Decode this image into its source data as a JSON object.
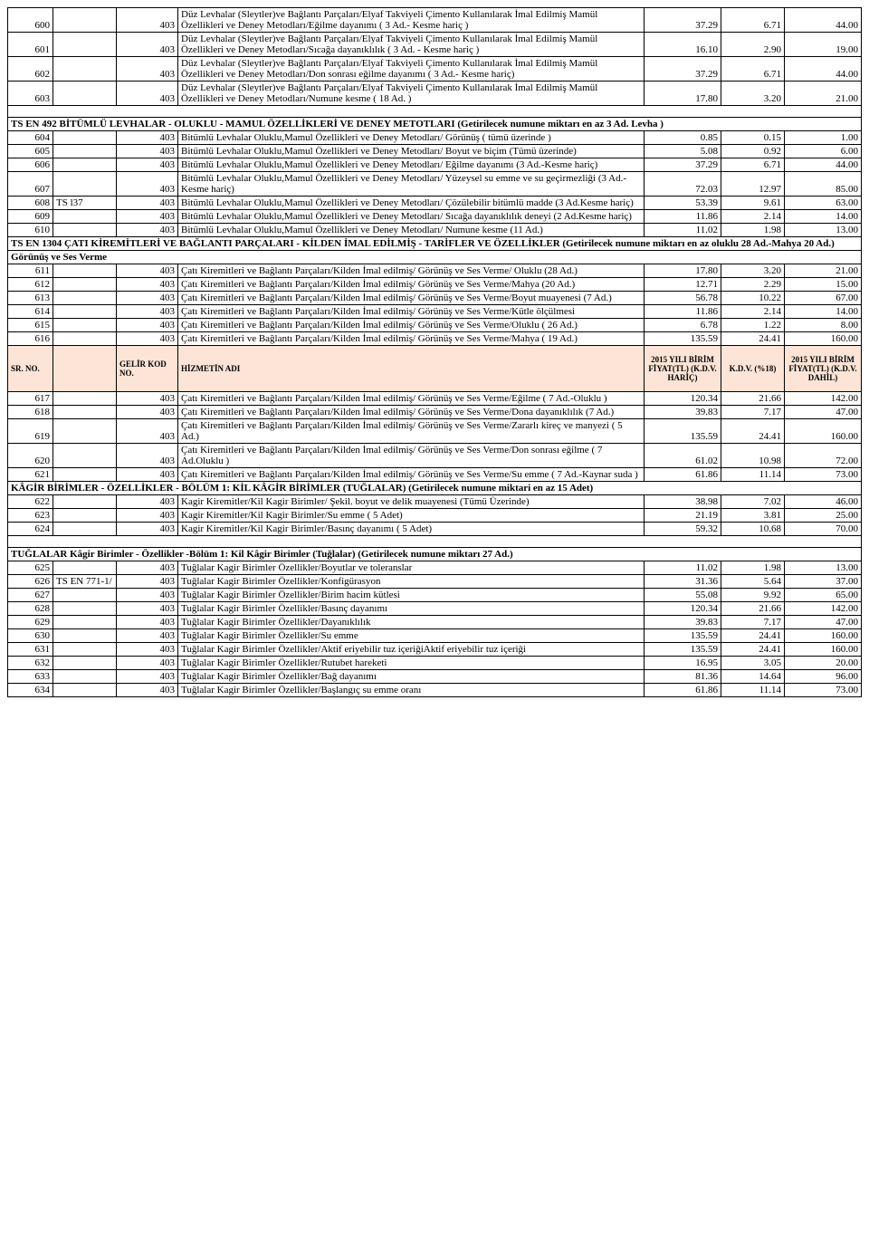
{
  "header": {
    "sr": "SR. NO.",
    "kod": "GELİR KOD NO.",
    "desc": "HİZMETİN ADI",
    "n1": "2015 YILI BİRİM FİYAT(TL) (K.D.V. HARİÇ)",
    "n2": "K.D.V. (%18)",
    "n3": "2015 YILI BİRİM FİYAT(TL) (K.D.V. DAHİL)"
  },
  "rows": [
    {
      "sr": "600",
      "std": "",
      "kod": "403",
      "desc": "Düz Levhalar (Sleytler)ve Bağlantı Parçaları/Elyaf Takviyeli Çimento Kullanılarak İmal Edilmiş Mamül Özellikleri ve Deney Metodları/Eğilme dayanımı  ( 3 Ad.- Kesme hariç )",
      "n1": "37.29",
      "n2": "6.71",
      "n3": "44.00"
    },
    {
      "sr": "601",
      "std": "",
      "kod": "403",
      "desc": "Düz Levhalar (Sleytler)ve Bağlantı Parçaları/Elyaf Takviyeli Çimento Kullanılarak İmal Edilmiş Mamül Özellikleri ve Deney Metodları/Sıcağa dayanıklılık ( 3 Ad. - Kesme hariç )",
      "n1": "16.10",
      "n2": "2.90",
      "n3": "19.00"
    },
    {
      "sr": "602",
      "std": "",
      "kod": "403",
      "desc": "Düz Levhalar (Sleytler)ve Bağlantı Parçaları/Elyaf Takviyeli Çimento Kullanılarak İmal Edilmiş Mamül Özellikleri ve Deney Metodları/Don sonrası eğilme dayanımı  ( 3 Ad.- Kesme hariç)",
      "n1": "37.29",
      "n2": "6.71",
      "n3": "44.00"
    },
    {
      "sr": "603",
      "std": "",
      "kod": "403",
      "desc": "Düz Levhalar (Sleytler)ve Bağlantı Parçaları/Elyaf Takviyeli Çimento Kullanılarak İmal Edilmiş Mamül Özellikleri ve Deney Metodları/Numune kesme  ( 18 Ad. )",
      "n1": "17.80",
      "n2": "3.20",
      "n3": "21.00"
    },
    {
      "type": "spacer"
    },
    {
      "type": "section",
      "desc": "TS EN 492 BİTÜMLÜ LEVHALAR - OLUKLU - MAMUL ÖZELLİKLERİ VE DENEY METOTLARI   (Getirilecek numune miktarı en az 3 Ad. Levha )"
    },
    {
      "sr": "604",
      "std": "",
      "kod": "403",
      "desc": "Bitümlü Levhalar Oluklu,Mamul Özellikleri ve Deney Metodları/ Görünüş  ( tümü üzerinde  )",
      "n1": "0.85",
      "n2": "0.15",
      "n3": "1.00"
    },
    {
      "sr": "605",
      "std": "",
      "kod": "403",
      "desc": "Bitümlü Levhalar Oluklu,Mamul Özellikleri ve Deney Metodları/ Boyut ve biçim (Tümü üzerinde)",
      "n1": "5.08",
      "n2": "0.92",
      "n3": "6.00"
    },
    {
      "sr": "606",
      "std": "",
      "kod": "403",
      "desc": "Bitümlü Levhalar Oluklu,Mamul Özellikleri ve Deney Metodları/ Eğilme dayanımı (3 Ad.-Kesme hariç)",
      "n1": "37.29",
      "n2": "6.71",
      "n3": "44.00"
    },
    {
      "sr": "607",
      "std": "",
      "kod": "403",
      "desc": "Bitümlü Levhalar Oluklu,Mamul Özellikleri ve Deney Metodları/ Yüzeysel su emme ve su geçirmezliği (3 Ad.-Kesme hariç)",
      "n1": "72.03",
      "n2": "12.97",
      "n3": "85.00"
    },
    {
      "sr": "608",
      "std": "TS l37",
      "kod": "403",
      "desc": "Bitümlü Levhalar Oluklu,Mamul Özellikleri ve Deney Metodları/ Çözülebilir bitümlü madde (3 Ad.Kesme hariç)",
      "n1": "53.39",
      "n2": "9.61",
      "n3": "63.00"
    },
    {
      "sr": "609",
      "std": "",
      "kod": "403",
      "desc": "Bitümlü Levhalar Oluklu,Mamul Özellikleri ve Deney Metodları/ Sıcağa dayanıklılık deneyi (2 Ad.Kesme hariç)",
      "n1": "11.86",
      "n2": "2.14",
      "n3": "14.00"
    },
    {
      "sr": "610",
      "std": "",
      "kod": "403",
      "desc": "Bitümlü Levhalar Oluklu,Mamul Özellikleri ve Deney Metodları/ Numune kesme (11 Ad.)",
      "n1": "11.02",
      "n2": "1.98",
      "n3": "13.00"
    },
    {
      "type": "section",
      "desc": "TS EN 1304 ÇATI KİREMİTLERİ VE BAĞLANTI PARÇALARI - KİLDEN İMAL EDİLMİŞ - TARİFLER VE ÖZELLİKLER (Getirilecek numune miktarı en az oluklu 28 Ad.-Mahya 20 Ad.)"
    },
    {
      "type": "section",
      "desc": "Görünüş ve Ses Verme"
    },
    {
      "sr": "611",
      "std": "",
      "kod": "403",
      "desc": "Çatı Kiremitleri ve Bağlantı Parçaları/Kilden İmal edilmiş/ Görünüş ve Ses Verme/ Oluklu (28 Ad.)",
      "n1": "17.80",
      "n2": "3.20",
      "n3": "21.00"
    },
    {
      "sr": "612",
      "std": "",
      "kod": "403",
      "desc": "Çatı Kiremitleri ve Bağlantı Parçaları/Kilden İmal edilmiş/ Görünüş ve Ses Verme/Mahya (20 Ad.)",
      "n1": "12.71",
      "n2": "2.29",
      "n3": "15.00"
    },
    {
      "sr": "613",
      "std": "",
      "kod": "403",
      "desc": "Çatı Kiremitleri ve Bağlantı Parçaları/Kilden İmal edilmiş/ Görünüş ve Ses Verme/Boyut muayenesi (7 Ad.)",
      "n1": "56.78",
      "n2": "10.22",
      "n3": "67.00"
    },
    {
      "sr": "614",
      "std": "",
      "kod": "403",
      "desc": "Çatı Kiremitleri ve Bağlantı Parçaları/Kilden İmal edilmiş/ Görünüş ve Ses Verme/Kütle ölçülmesi",
      "n1": "11.86",
      "n2": "2.14",
      "n3": "14.00"
    },
    {
      "sr": "615",
      "std": "",
      "kod": "403",
      "desc": "Çatı Kiremitleri ve Bağlantı Parçaları/Kilden İmal edilmiş/ Görünüş ve Ses Verme/Oluklu ( 26 Ad.)",
      "n1": "6.78",
      "n2": "1.22",
      "n3": "8.00"
    },
    {
      "sr": "616",
      "std": "",
      "kod": "403",
      "desc": "Çatı Kiremitleri ve Bağlantı Parçaları/Kilden İmal edilmiş/ Görünüş ve Ses Verme/Mahya ( 19 Ad.)",
      "n1": "135.59",
      "n2": "24.41",
      "n3": "160.00"
    },
    {
      "type": "header"
    },
    {
      "sr": "617",
      "std": "",
      "kod": "403",
      "desc": "Çatı Kiremitleri ve Bağlantı Parçaları/Kilden İmal edilmiş/ Görünüş ve Ses Verme/Eğilme ( 7 Ad.-Oluklu )",
      "n1": "120.34",
      "n2": "21.66",
      "n3": "142.00"
    },
    {
      "sr": "618",
      "std": "",
      "kod": "403",
      "desc": "Çatı Kiremitleri ve Bağlantı Parçaları/Kilden İmal edilmiş/ Görünüş ve Ses Verme/Dona dayanıklılık (7 Ad.)",
      "n1": "39.83",
      "n2": "7.17",
      "n3": "47.00"
    },
    {
      "sr": "619",
      "std": "",
      "kod": "403",
      "desc": "Çatı Kiremitleri ve Bağlantı Parçaları/Kilden İmal edilmiş/ Görünüş ve Ses Verme/Zararlı kireç ve manyezi ( 5 Ad.)",
      "n1": "135.59",
      "n2": "24.41",
      "n3": "160.00"
    },
    {
      "sr": "620",
      "std": "",
      "kod": "403",
      "desc": "Çatı Kiremitleri ve Bağlantı Parçaları/Kilden İmal edilmiş/ Görünüş ve Ses Verme/Don sonrası  eğilme ( 7 Ad.Oluklu )",
      "n1": "61.02",
      "n2": "10.98",
      "n3": "72.00"
    },
    {
      "sr": "621",
      "std": "",
      "kod": "403",
      "desc": "Çatı Kiremitleri ve Bağlantı Parçaları/Kilden İmal edilmiş/ Görünüş ve Ses Verme/Su emme ( 7 Ad.-Kaynar suda )",
      "n1": "61.86",
      "n2": "11.14",
      "n3": "73.00"
    },
    {
      "type": "section",
      "desc": "KÂGİR BİRİMLER - ÖZELLİKLER - BÖLÜM 1: KİL KÂGİR BİRİMLER (TUĞLALAR) (Getirilecek numune miktari en az 15 Adet)"
    },
    {
      "sr": "622",
      "std": "",
      "kod": "403",
      "desc": "Kagir Kiremitler/Kil Kagir Birimler/ Şekil. boyut ve delik muayenesi (Tümü Üzerinde)",
      "n1": "38.98",
      "n2": "7.02",
      "n3": "46.00"
    },
    {
      "sr": "623",
      "std": "",
      "kod": "403",
      "desc": "Kagir Kiremitler/Kil Kagir Birimler/Su emme  ( 5 Adet)",
      "n1": "21.19",
      "n2": "3.81",
      "n3": "25.00"
    },
    {
      "sr": "624",
      "std": "",
      "kod": "403",
      "desc": "Kagir Kiremitler/Kil Kagir Birimler/Basınç dayanımı  ( 5 Adet)",
      "n1": "59.32",
      "n2": "10.68",
      "n3": "70.00"
    },
    {
      "type": "spacer"
    },
    {
      "type": "section",
      "desc": "TUĞLALAR Kâgir Birimler - Özellikler -Bölüm 1: Kil Kâgir Birimler (Tuğlalar) (Getirilecek numune miktarı  27 Ad.)"
    },
    {
      "sr": "625",
      "std": "",
      "kod": "403",
      "desc": "Tuğlalar Kagir Birimler Özellikler/Boyutlar ve toleranslar",
      "n1": "11.02",
      "n2": "1.98",
      "n3": "13.00"
    },
    {
      "sr": "626",
      "std": "TS EN 771-1/",
      "kod": "403",
      "desc": "Tuğlalar Kagir Birimler Özellikler/Konfigürasyon",
      "n1": "31.36",
      "n2": "5.64",
      "n3": "37.00"
    },
    {
      "sr": "627",
      "std": "",
      "kod": "403",
      "desc": "Tuğlalar Kagir Birimler Özellikler/Birim hacim kütlesi",
      "n1": "55.08",
      "n2": "9.92",
      "n3": "65.00"
    },
    {
      "sr": "628",
      "std": "",
      "kod": "403",
      "desc": "Tuğlalar Kagir Birimler Özellikler/Basınç dayanımı",
      "n1": "120.34",
      "n2": "21.66",
      "n3": "142.00"
    },
    {
      "sr": "629",
      "std": "",
      "kod": "403",
      "desc": "Tuğlalar Kagir Birimler Özellikler/Dayanıklılık",
      "n1": "39.83",
      "n2": "7.17",
      "n3": "47.00"
    },
    {
      "sr": "630",
      "std": "",
      "kod": "403",
      "desc": "Tuğlalar Kagir Birimler Özellikler/Su emme",
      "n1": "135.59",
      "n2": "24.41",
      "n3": "160.00"
    },
    {
      "sr": "631",
      "std": "",
      "kod": "403",
      "desc": "Tuğlalar Kagir Birimler Özellikler/Aktif eriyebilir tuz içeriğiAktif eriyebilir tuz içeriği",
      "n1": "135.59",
      "n2": "24.41",
      "n3": "160.00"
    },
    {
      "sr": "632",
      "std": "",
      "kod": "403",
      "desc": "Tuğlalar Kagir Birimler Özellikler/Rutubet hareketi",
      "n1": "16.95",
      "n2": "3.05",
      "n3": "20.00"
    },
    {
      "sr": "633",
      "std": "",
      "kod": "403",
      "desc": "Tuğlalar Kagir Birimler Özellikler/Bağ dayanımı",
      "n1": "81.36",
      "n2": "14.64",
      "n3": "96.00"
    },
    {
      "sr": "634",
      "std": "",
      "kod": "403",
      "desc": "Tuğlalar Kagir Birimler Özellikler/Başlangıç su emme oranı",
      "n1": "61.86",
      "n2": "11.14",
      "n3": "73.00"
    }
  ]
}
